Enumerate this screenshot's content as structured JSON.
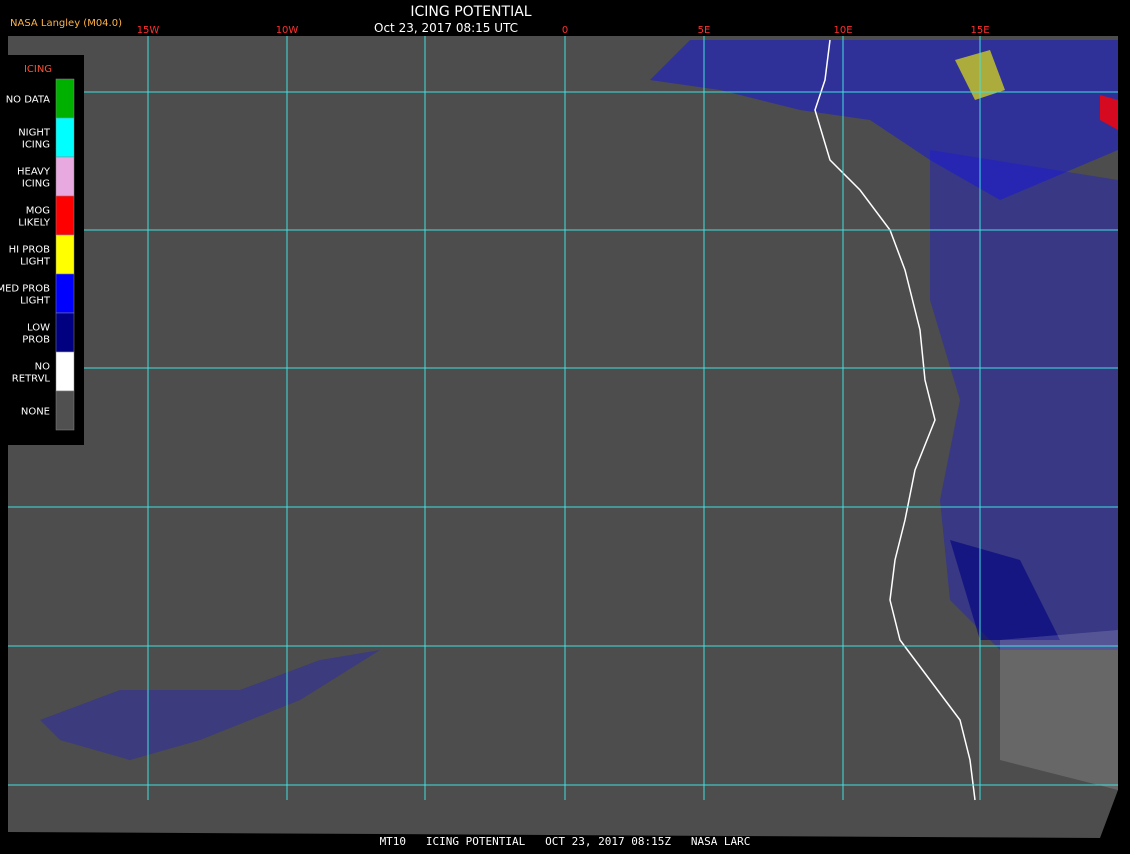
{
  "header": {
    "source": "NASA Langley (M04.0)",
    "title": "ICING POTENTIAL",
    "timestamp": "Oct 23, 2017 08:15 UTC"
  },
  "longitude_labels": [
    "15W",
    "10W",
    "0",
    "5E",
    "10E",
    "15E"
  ],
  "legend": {
    "title": "ICING",
    "items": [
      {
        "label": [
          "NO DATA"
        ],
        "color": "#00b000"
      },
      {
        "label": [
          "NIGHT",
          "ICING"
        ],
        "color": "#00ffff"
      },
      {
        "label": [
          "HEAVY",
          "ICING"
        ],
        "color": "#e8a8e0"
      },
      {
        "label": [
          "MOG",
          "LIKELY"
        ],
        "color": "#ff0000"
      },
      {
        "label": [
          "HI PROB",
          "LIGHT"
        ],
        "color": "#ffff00"
      },
      {
        "label": [
          "MED PROB",
          "LIGHT"
        ],
        "color": "#0000ff"
      },
      {
        "label": [
          "LOW",
          "PROB"
        ],
        "color": "#000080"
      },
      {
        "label": [
          "NO",
          "RETRVL"
        ],
        "color": "#ffffff"
      },
      {
        "label": [
          "NONE"
        ],
        "color": "#505050"
      }
    ]
  },
  "footer": "MT10   ICING POTENTIAL   OCT 23, 2017 08:15Z   NASA LARC"
}
